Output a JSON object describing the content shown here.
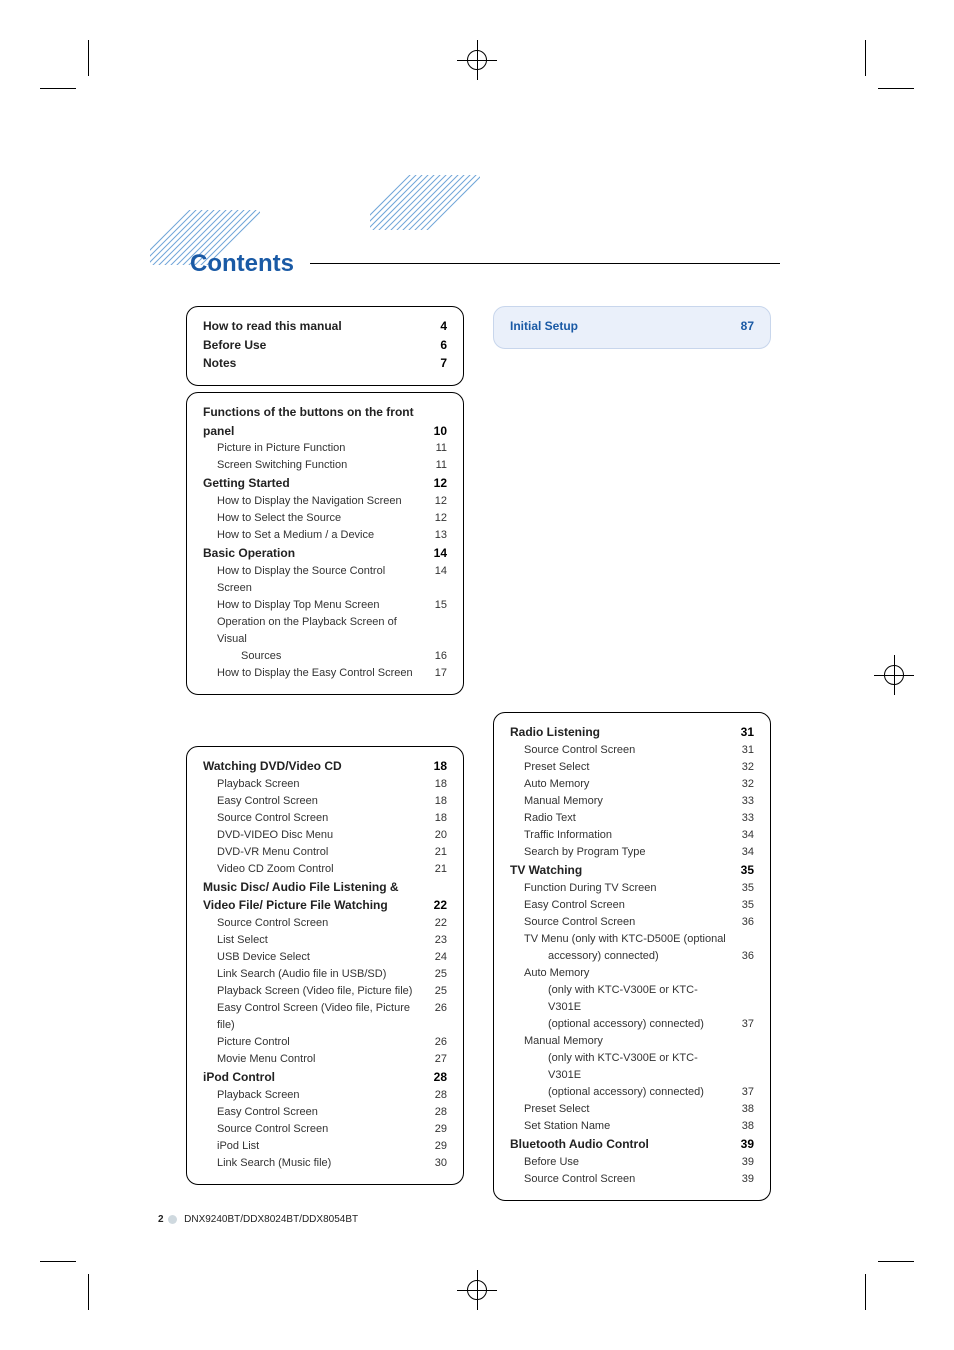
{
  "title": "Contents",
  "footer": {
    "page": "2",
    "model": "DNX9240BT/DDX8024BT/DDX8054BT"
  },
  "box_intro": [
    {
      "head": true,
      "label": "How to read this manual",
      "num": "4"
    },
    {
      "head": true,
      "label": "Before Use",
      "num": "6"
    },
    {
      "head": true,
      "label": "Notes",
      "num": "7"
    }
  ],
  "box_front": [
    {
      "head": true,
      "label": "Functions of the buttons on the front panel",
      "num": "10",
      "wrap": true
    },
    {
      "ind": true,
      "label": "Picture in Picture Function",
      "num": "11"
    },
    {
      "ind": true,
      "label": "Screen Switching Function",
      "num": "11"
    },
    {
      "head": true,
      "label": "Getting Started",
      "num": "12"
    },
    {
      "ind": true,
      "label": "How to Display the Navigation Screen",
      "num": "12"
    },
    {
      "ind": true,
      "label": "How to Select the Source",
      "num": "12"
    },
    {
      "ind": true,
      "label": "How to Set a Medium / a Device",
      "num": "13"
    },
    {
      "head": true,
      "label": "Basic Operation",
      "num": "14"
    },
    {
      "ind": true,
      "label": "How to Display the Source Control Screen",
      "num": "14"
    },
    {
      "ind": true,
      "label": "How to Display Top Menu Screen",
      "num": "15"
    },
    {
      "ind": true,
      "label": "Operation on the Playback Screen of Visual Sources",
      "num": "16",
      "wrap2": true
    },
    {
      "ind": true,
      "label": "How to Display the Easy Control Screen",
      "num": "17"
    }
  ],
  "box_setup": [
    {
      "head": true,
      "label": "Initial Setup",
      "num": "87"
    }
  ],
  "box_media": [
    {
      "head": true,
      "label": "Watching DVD/Video CD",
      "num": "18"
    },
    {
      "ind": true,
      "label": "Playback Screen",
      "num": "18"
    },
    {
      "ind": true,
      "label": "Easy Control Screen",
      "num": "18"
    },
    {
      "ind": true,
      "label": "Source Control Screen",
      "num": "18"
    },
    {
      "ind": true,
      "label": "DVD-VIDEO Disc Menu",
      "num": "20"
    },
    {
      "ind": true,
      "label": "DVD-VR Menu Control",
      "num": "21"
    },
    {
      "ind": true,
      "label": "Video CD Zoom Control",
      "num": "21"
    },
    {
      "head": true,
      "label": "Music Disc/ Audio File Listening & Video File/ Picture File Watching",
      "num": "22",
      "wrap": true
    },
    {
      "ind": true,
      "label": "Source Control Screen",
      "num": "22"
    },
    {
      "ind": true,
      "label": "List Select",
      "num": "23"
    },
    {
      "ind": true,
      "label": "USB Device Select",
      "num": "24"
    },
    {
      "ind": true,
      "label": "Link Search (Audio file in USB/SD)",
      "num": "25"
    },
    {
      "ind": true,
      "label": "Playback Screen (Video file, Picture file)",
      "num": "25"
    },
    {
      "ind": true,
      "label": "Easy Control Screen (Video file, Picture file)",
      "num": "26"
    },
    {
      "ind": true,
      "label": "Picture Control",
      "num": "26"
    },
    {
      "ind": true,
      "label": "Movie Menu Control",
      "num": "27"
    },
    {
      "head": true,
      "label": "iPod Control",
      "num": "28"
    },
    {
      "ind": true,
      "label": "Playback Screen",
      "num": "28"
    },
    {
      "ind": true,
      "label": "Easy Control Screen",
      "num": "28"
    },
    {
      "ind": true,
      "label": "Source Control Screen",
      "num": "29"
    },
    {
      "ind": true,
      "label": "iPod List",
      "num": "29"
    },
    {
      "ind": true,
      "label": "Link Search (Music file)",
      "num": "30"
    }
  ],
  "box_radio": [
    {
      "head": true,
      "label": "Radio Listening",
      "num": "31"
    },
    {
      "ind": true,
      "label": "Source Control Screen",
      "num": "31"
    },
    {
      "ind": true,
      "label": "Preset Select",
      "num": "32"
    },
    {
      "ind": true,
      "label": "Auto Memory",
      "num": "32"
    },
    {
      "ind": true,
      "label": "Manual Memory",
      "num": "33"
    },
    {
      "ind": true,
      "label": "Radio Text",
      "num": "33"
    },
    {
      "ind": true,
      "label": "Traffic Information",
      "num": "34"
    },
    {
      "ind": true,
      "label": "Search by Program Type",
      "num": "34"
    },
    {
      "head": true,
      "label": "TV Watching",
      "num": "35"
    },
    {
      "ind": true,
      "label": "Function During TV Screen",
      "num": "35"
    },
    {
      "ind": true,
      "label": "Easy Control Screen",
      "num": "35"
    },
    {
      "ind": true,
      "label": "Source Control Screen",
      "num": "36"
    },
    {
      "ind": true,
      "label": "TV Menu (only with KTC-D500E (optional accessory) connected)",
      "num": "36",
      "wrap2": true
    },
    {
      "ind": true,
      "label": "Auto Memory\n(only with KTC-V300E or KTC-V301E (optional accessory) connected)",
      "num": "37",
      "multi": true
    },
    {
      "ind": true,
      "label": "Manual Memory\n(only with KTC-V300E or KTC-V301E (optional accessory) connected)",
      "num": "37",
      "multi": true
    },
    {
      "ind": true,
      "label": "Preset Select",
      "num": "38"
    },
    {
      "ind": true,
      "label": "Set Station Name",
      "num": "38"
    },
    {
      "head": true,
      "label": "Bluetooth Audio Control",
      "num": "39"
    },
    {
      "ind": true,
      "label": "Before Use",
      "num": "39"
    },
    {
      "ind": true,
      "label": "Source Control Screen",
      "num": "39"
    }
  ]
}
